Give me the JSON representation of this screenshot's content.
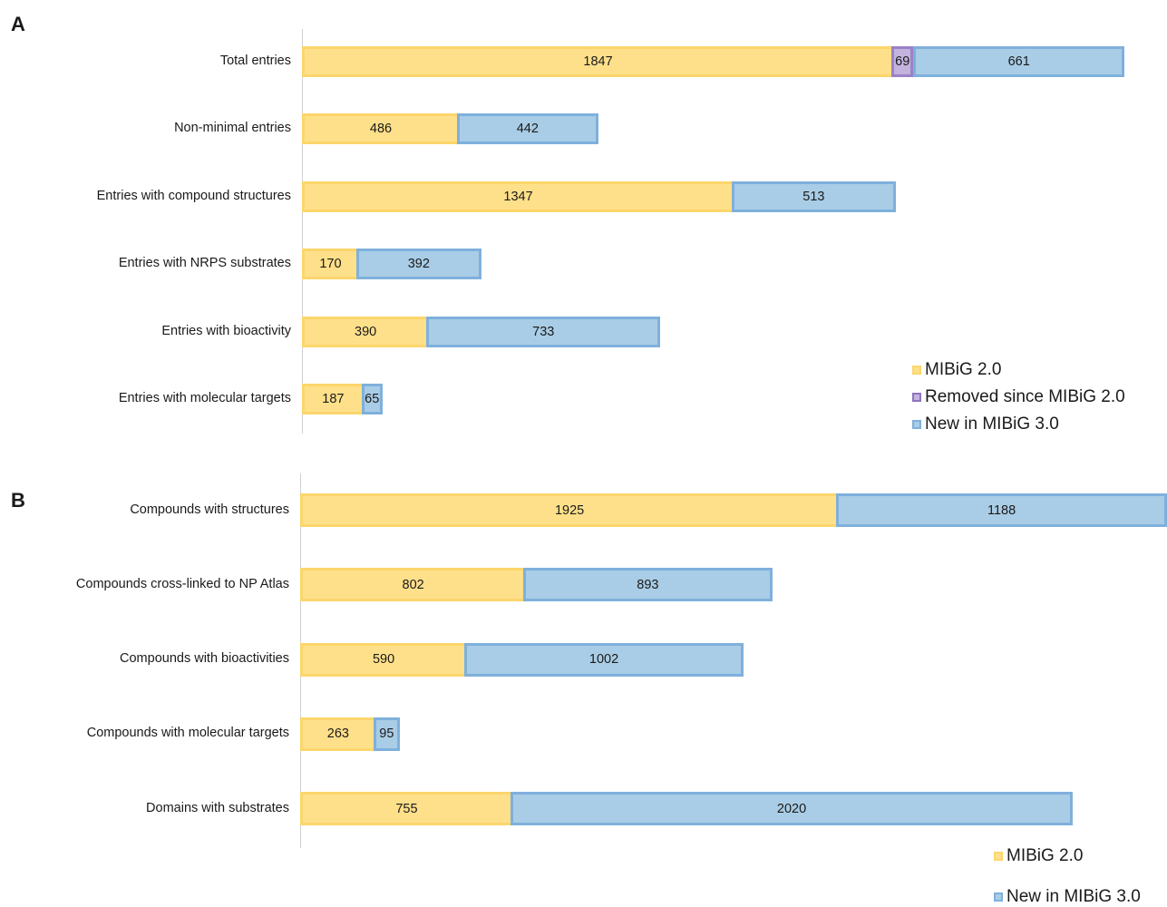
{
  "chart_data": [
    {
      "type": "bar",
      "orientation": "horizontal",
      "stacked": true,
      "panel": "A",
      "categories": [
        "Total entries",
        "Non-minimal entries",
        "Entries with compound structures",
        "Entries with NRPS substrates",
        "Entries with bioactivity",
        "Entries with molecular targets"
      ],
      "series": [
        {
          "name": "MIBiG 2.0",
          "values": [
            1847,
            486,
            1347,
            170,
            390,
            187
          ],
          "color": "#ffe08a",
          "border": "#fcd66c"
        },
        {
          "name": "Removed since MIBiG 2.0",
          "values": [
            69,
            0,
            0,
            0,
            0,
            0
          ],
          "color": "#c3b3dd",
          "border": "#9b82c8"
        },
        {
          "name": "New in MIBiG 3.0",
          "values": [
            661,
            442,
            513,
            392,
            733,
            65
          ],
          "color": "#a9cde6",
          "border": "#7fb0dc"
        }
      ],
      "grid": false,
      "legend": "bottom-right"
    },
    {
      "type": "bar",
      "orientation": "horizontal",
      "stacked": true,
      "panel": "B",
      "categories": [
        "Compounds with structures",
        "Compounds cross-linked to NP Atlas",
        "Compounds with bioactivities",
        "Compounds with molecular targets",
        "Domains with substrates"
      ],
      "series": [
        {
          "name": "MIBiG 2.0",
          "values": [
            1925,
            802,
            590,
            263,
            755
          ],
          "color": "#ffe08a",
          "border": "#fcd66c"
        },
        {
          "name": "New in MIBiG 3.0",
          "values": [
            1188,
            893,
            1002,
            95,
            2020
          ],
          "color": "#a9cde6",
          "border": "#7fb0dc"
        }
      ],
      "grid": false,
      "legend": "bottom-right"
    }
  ]
}
